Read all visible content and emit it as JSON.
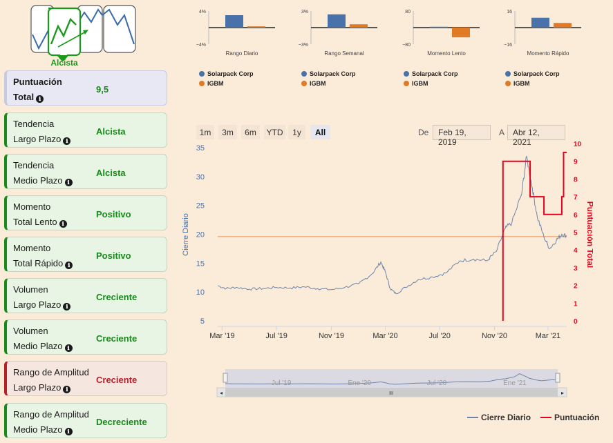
{
  "logo": {
    "label": "Alcista"
  },
  "cards": [
    {
      "l1": "Puntuación",
      "l2": "Total",
      "value": "9,5",
      "style": "blue"
    },
    {
      "l1": "Tendencia",
      "l2": "Largo Plazo",
      "value": "Alcista",
      "style": "green"
    },
    {
      "l1": "Tendencia",
      "l2": "Medio Plazo",
      "value": "Alcista",
      "style": "green"
    },
    {
      "l1": "Momento",
      "l2": "Total Lento",
      "value": "Positivo",
      "style": "green"
    },
    {
      "l1": "Momento",
      "l2": "Total Rápido",
      "value": "Positivo",
      "style": "green"
    },
    {
      "l1": "Volumen",
      "l2": "Largo Plazo",
      "value": "Creciente",
      "style": "green"
    },
    {
      "l1": "Volumen",
      "l2": "Medio Plazo",
      "value": "Creciente",
      "style": "green"
    },
    {
      "l1": "Rango de Amplitud",
      "l2": "Largo Plazo",
      "value": "Creciente",
      "style": "red"
    },
    {
      "l1": "Rango de Amplitud",
      "l2": "Medio Plazo",
      "value": "Decreciente",
      "style": "green"
    }
  ],
  "info_icon": "ℹ",
  "colors": {
    "company": "#4a72aa",
    "index": "#e07a24",
    "score": "#e8001c",
    "price": "#6b84a8",
    "ref": "#f0a06a"
  },
  "range_buttons": [
    "1m",
    "3m",
    "6m",
    "YTD",
    "1y",
    "All"
  ],
  "range_active": "All",
  "date_range": {
    "from_label": "De",
    "from": "Feb 19, 2019",
    "to_label": "A",
    "to": "Abr 12, 2021"
  },
  "legend": {
    "price": "Cierre Diario",
    "score": "Puntuación"
  },
  "navigator": {
    "labels": [
      "Jul '19",
      "Ene '20",
      "Jul '20",
      "Ene '21"
    ],
    "handle": "III"
  },
  "chart_data": [
    {
      "type": "bar",
      "title": "Rango Diario",
      "series": [
        {
          "name": "Solarpack Corp",
          "values": [
            3.0
          ]
        },
        {
          "name": "IGBM",
          "values": [
            0.3
          ]
        }
      ],
      "ylim": [
        -4,
        4
      ],
      "ytick_labels": [
        "4%",
        "−4%"
      ]
    },
    {
      "type": "bar",
      "title": "Rango Semanal",
      "series": [
        {
          "name": "Solarpack Corp",
          "values": [
            2.4
          ]
        },
        {
          "name": "IGBM",
          "values": [
            0.6
          ]
        }
      ],
      "ylim": [
        -3,
        3
      ],
      "ytick_labels": [
        "3%",
        "−3%"
      ]
    },
    {
      "type": "bar",
      "title": "Momento Lento",
      "series": [
        {
          "name": "Solarpack Corp",
          "values": [
            4
          ]
        },
        {
          "name": "IGBM",
          "values": [
            -47
          ]
        }
      ],
      "ylim": [
        -80,
        80
      ],
      "ytick_labels": [
        "80",
        "−80"
      ]
    },
    {
      "type": "bar",
      "title": "Momento Rápido",
      "series": [
        {
          "name": "Solarpack Corp",
          "values": [
            9.5
          ]
        },
        {
          "name": "IGBM",
          "values": [
            4.5
          ]
        }
      ],
      "ylim": [
        -16,
        16
      ],
      "ytick_labels": [
        "16",
        "−16"
      ]
    },
    {
      "type": "line",
      "ylabel": "Cierre Diario",
      "y2label": "Puntuación Total",
      "ylim": [
        5,
        35
      ],
      "yticks": [
        5,
        10,
        15,
        20,
        25,
        30,
        35
      ],
      "y2lim": [
        0,
        10
      ],
      "y2ticks": [
        0,
        1,
        2,
        3,
        4,
        5,
        6,
        7,
        8,
        9,
        10
      ],
      "xticks": [
        "Mar '19",
        "Jul '19",
        "Nov '19",
        "Mar '20",
        "Jul '20",
        "Nov '20",
        "Mar '21"
      ],
      "reference_line": 19.6,
      "price_series": {
        "name": "Cierre Diario",
        "points": [
          [
            "2019-02-19",
            11.1
          ],
          [
            "2019-03-10",
            10.6
          ],
          [
            "2019-04-01",
            10.8
          ],
          [
            "2019-05-01",
            10.5
          ],
          [
            "2019-06-01",
            10.6
          ],
          [
            "2019-07-01",
            10.8
          ],
          [
            "2019-08-01",
            10.7
          ],
          [
            "2019-09-01",
            10.9
          ],
          [
            "2019-10-01",
            10.6
          ],
          [
            "2019-11-01",
            10.4
          ],
          [
            "2019-12-01",
            10.8
          ],
          [
            "2020-01-01",
            11.4
          ],
          [
            "2020-02-01",
            13.2
          ],
          [
            "2020-02-20",
            15.2
          ],
          [
            "2020-03-01",
            13.5
          ],
          [
            "2020-03-12",
            10.6
          ],
          [
            "2020-03-25",
            9.7
          ],
          [
            "2020-04-15",
            10.8
          ],
          [
            "2020-05-15",
            12.2
          ],
          [
            "2020-06-15",
            12.6
          ],
          [
            "2020-07-15",
            13.3
          ],
          [
            "2020-08-15",
            15.4
          ],
          [
            "2020-09-15",
            15.7
          ],
          [
            "2020-10-15",
            15.4
          ],
          [
            "2020-11-05",
            17.0
          ],
          [
            "2020-11-25",
            21.0
          ],
          [
            "2020-12-10",
            22.0
          ],
          [
            "2021-01-01",
            27.0
          ],
          [
            "2021-01-12",
            33.5
          ],
          [
            "2021-01-25",
            28.0
          ],
          [
            "2021-02-05",
            23.0
          ],
          [
            "2021-02-20",
            19.5
          ],
          [
            "2021-03-05",
            17.5
          ],
          [
            "2021-03-20",
            19.0
          ],
          [
            "2021-04-01",
            20.0
          ],
          [
            "2021-04-12",
            19.7
          ]
        ]
      },
      "score_series": {
        "name": "Puntuación",
        "points": [
          [
            "2020-11-20",
            0
          ],
          [
            "2020-11-20",
            9
          ],
          [
            "2021-01-20",
            9
          ],
          [
            "2021-01-20",
            7
          ],
          [
            "2021-02-20",
            7
          ],
          [
            "2021-02-20",
            6
          ],
          [
            "2021-04-01",
            6
          ],
          [
            "2021-04-01",
            7
          ],
          [
            "2021-04-05",
            7
          ],
          [
            "2021-04-05",
            9.5
          ],
          [
            "2021-04-12",
            9.5
          ]
        ]
      }
    }
  ]
}
